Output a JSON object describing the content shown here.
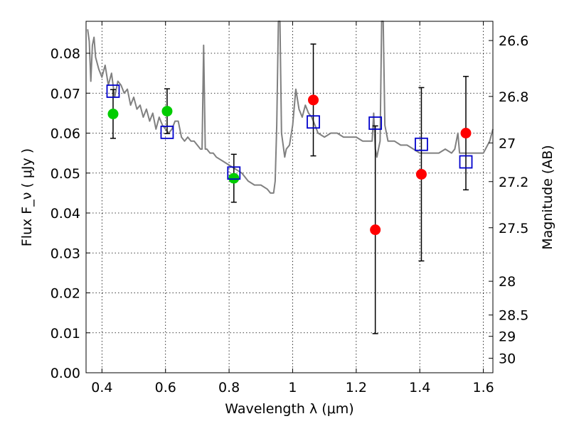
{
  "chart_data": {
    "type": "scatter",
    "xlabel": "Wavelength  λ (μm)",
    "ylabel": "Flux  F_ν  ( μJy )",
    "y2label": "Magnitude (AB)",
    "xlim": [
      0.35,
      1.63
    ],
    "ylim": [
      0.0,
      0.088
    ],
    "x_ticks": [
      0.4,
      0.6,
      0.8,
      1.0,
      1.2,
      1.4,
      1.6
    ],
    "x_tick_labels": [
      "0.4",
      "0.6",
      "0.8",
      "1",
      "1.2",
      "1.4",
      "1.6"
    ],
    "y_ticks": [
      0.0,
      0.01,
      0.02,
      0.03,
      0.04,
      0.05,
      0.06,
      0.07,
      0.08
    ],
    "y_tick_labels": [
      "0.00",
      "0.01",
      "0.02",
      "0.03",
      "0.04",
      "0.05",
      "0.06",
      "0.07",
      "0.08"
    ],
    "mag_ticks": [
      26.6,
      26.8,
      27.0,
      27.2,
      27.5,
      28.0,
      28.5,
      29.0,
      30.0
    ],
    "mag_tick_labels": [
      "26.6",
      "26.8",
      "27",
      "27.2",
      "27.5",
      "28",
      "28.5",
      "29",
      "30"
    ],
    "grid": true,
    "model_spectrum": {
      "color": "#808080",
      "x": [
        0.355,
        0.36,
        0.365,
        0.37,
        0.375,
        0.38,
        0.39,
        0.4,
        0.41,
        0.42,
        0.43,
        0.44,
        0.45,
        0.46,
        0.47,
        0.48,
        0.49,
        0.5,
        0.51,
        0.52,
        0.53,
        0.54,
        0.55,
        0.56,
        0.57,
        0.58,
        0.59,
        0.6,
        0.61,
        0.62,
        0.63,
        0.64,
        0.65,
        0.66,
        0.67,
        0.68,
        0.69,
        0.7,
        0.71,
        0.715,
        0.72,
        0.725,
        0.73,
        0.74,
        0.75,
        0.76,
        0.78,
        0.8,
        0.82,
        0.84,
        0.86,
        0.88,
        0.9,
        0.92,
        0.93,
        0.94,
        0.945,
        0.95,
        0.955,
        0.96,
        0.965,
        0.97,
        0.975,
        0.98,
        0.99,
        1.0,
        1.01,
        1.02,
        1.03,
        1.04,
        1.05,
        1.06,
        1.07,
        1.08,
        1.1,
        1.12,
        1.14,
        1.16,
        1.18,
        1.2,
        1.22,
        1.24,
        1.25,
        1.255,
        1.26,
        1.265,
        1.27,
        1.275,
        1.28,
        1.285,
        1.29,
        1.3,
        1.32,
        1.34,
        1.36,
        1.38,
        1.4,
        1.42,
        1.44,
        1.46,
        1.48,
        1.5,
        1.51,
        1.52,
        1.525,
        1.53,
        1.54,
        1.56,
        1.58,
        1.6,
        1.62,
        1.63
      ],
      "y": [
        0.086,
        0.083,
        0.073,
        0.082,
        0.084,
        0.079,
        0.076,
        0.074,
        0.077,
        0.072,
        0.075,
        0.069,
        0.073,
        0.072,
        0.07,
        0.071,
        0.067,
        0.069,
        0.066,
        0.067,
        0.064,
        0.066,
        0.063,
        0.065,
        0.061,
        0.064,
        0.062,
        0.061,
        0.06,
        0.061,
        0.063,
        0.063,
        0.059,
        0.058,
        0.059,
        0.058,
        0.058,
        0.057,
        0.056,
        0.056,
        0.082,
        0.056,
        0.056,
        0.055,
        0.055,
        0.054,
        0.053,
        0.052,
        0.051,
        0.05,
        0.048,
        0.047,
        0.047,
        0.046,
        0.045,
        0.045,
        0.048,
        0.062,
        0.088,
        0.088,
        0.06,
        0.057,
        0.054,
        0.056,
        0.057,
        0.062,
        0.071,
        0.066,
        0.064,
        0.067,
        0.065,
        0.064,
        0.062,
        0.06,
        0.059,
        0.06,
        0.06,
        0.059,
        0.059,
        0.059,
        0.058,
        0.058,
        0.058,
        0.065,
        0.056,
        0.054,
        0.056,
        0.058,
        0.088,
        0.088,
        0.062,
        0.058,
        0.058,
        0.057,
        0.057,
        0.056,
        0.055,
        0.055,
        0.055,
        0.055,
        0.056,
        0.055,
        0.056,
        0.06,
        0.055,
        0.055,
        0.055,
        0.055,
        0.055,
        0.055,
        0.058,
        0.061
      ]
    },
    "series": [
      {
        "marker": "circle-green",
        "color": "#00cc00",
        "x": [
          0.435,
          0.605,
          0.815
        ],
        "y": [
          0.0648,
          0.0655,
          0.0487
        ],
        "err": [
          0.0061,
          0.0056,
          0.006
        ]
      },
      {
        "marker": "circle-red",
        "color": "#ff0000",
        "x": [
          1.065,
          1.26,
          1.405,
          1.545
        ],
        "y": [
          0.0683,
          0.0358,
          0.0497,
          0.06
        ],
        "err": [
          0.014,
          0.026,
          0.0217,
          0.0142
        ]
      },
      {
        "marker": "open-square-blue",
        "color": "#0000cc",
        "x": [
          0.435,
          0.605,
          0.815,
          1.065,
          1.26,
          1.405,
          1.545
        ],
        "y": [
          0.0705,
          0.0602,
          0.05,
          0.0628,
          0.0625,
          0.0572,
          0.0528
        ]
      }
    ]
  }
}
